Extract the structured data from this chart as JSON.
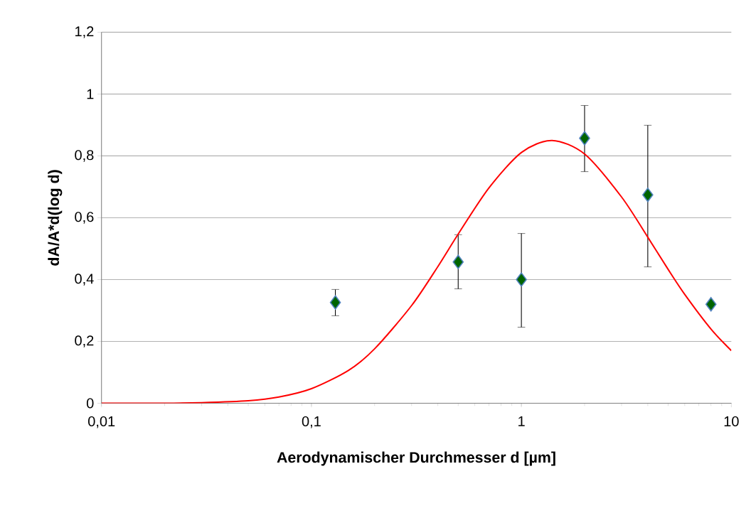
{
  "chart_data": {
    "type": "scatter",
    "xlabel": "Aerodynamischer Durchmesser d [µm]",
    "ylabel": "dA/A*d(log d)",
    "log": "x",
    "grid": "y",
    "xlim": [
      0.01,
      10
    ],
    "xticks": [
      {
        "value": 0.01,
        "label": "0,01"
      },
      {
        "value": 0.1,
        "label": "0,1"
      },
      1,
      10
    ],
    "ylim": [
      0,
      1.2
    ],
    "yticks": [
      0,
      {
        "value": 0.2,
        "label": "0,2"
      },
      {
        "value": 0.4,
        "label": "0,4"
      },
      {
        "value": 0.6,
        "label": "0,6"
      },
      {
        "value": 0.8,
        "label": "0,8"
      },
      1,
      {
        "value": 1.2,
        "label": "1,2"
      }
    ],
    "series": [
      {
        "color": "#006400",
        "marker": "diamond",
        "x": [
          0.13,
          0.5,
          1,
          2,
          4,
          8
        ],
        "values": [
          0.326,
          0.457,
          0.4,
          0.857,
          0.674,
          0.32
        ],
        "errors": [
          [
            0.283,
            0.368
          ],
          [
            0.37,
            0.545
          ],
          [
            0.246,
            0.549
          ],
          [
            0.749,
            0.963
          ],
          [
            0.441,
            0.899
          ],
          null
        ]
      },
      {
        "type": "line",
        "color": "#ff0000",
        "marker": "none",
        "line_style": "solid",
        "x": [
          0.01,
          0.02,
          0.03,
          0.05,
          0.07,
          0.1,
          0.15,
          0.2,
          0.3,
          0.4,
          0.5,
          0.7,
          1,
          1.4,
          2,
          3,
          4,
          5,
          6,
          8,
          10
        ],
        "values": [
          0,
          0,
          0.002,
          0.008,
          0.02,
          0.047,
          0.106,
          0.176,
          0.316,
          0.442,
          0.547,
          0.696,
          0.811,
          0.85,
          0.806,
          0.667,
          0.537,
          0.433,
          0.352,
          0.24,
          0.17
        ]
      }
    ]
  }
}
